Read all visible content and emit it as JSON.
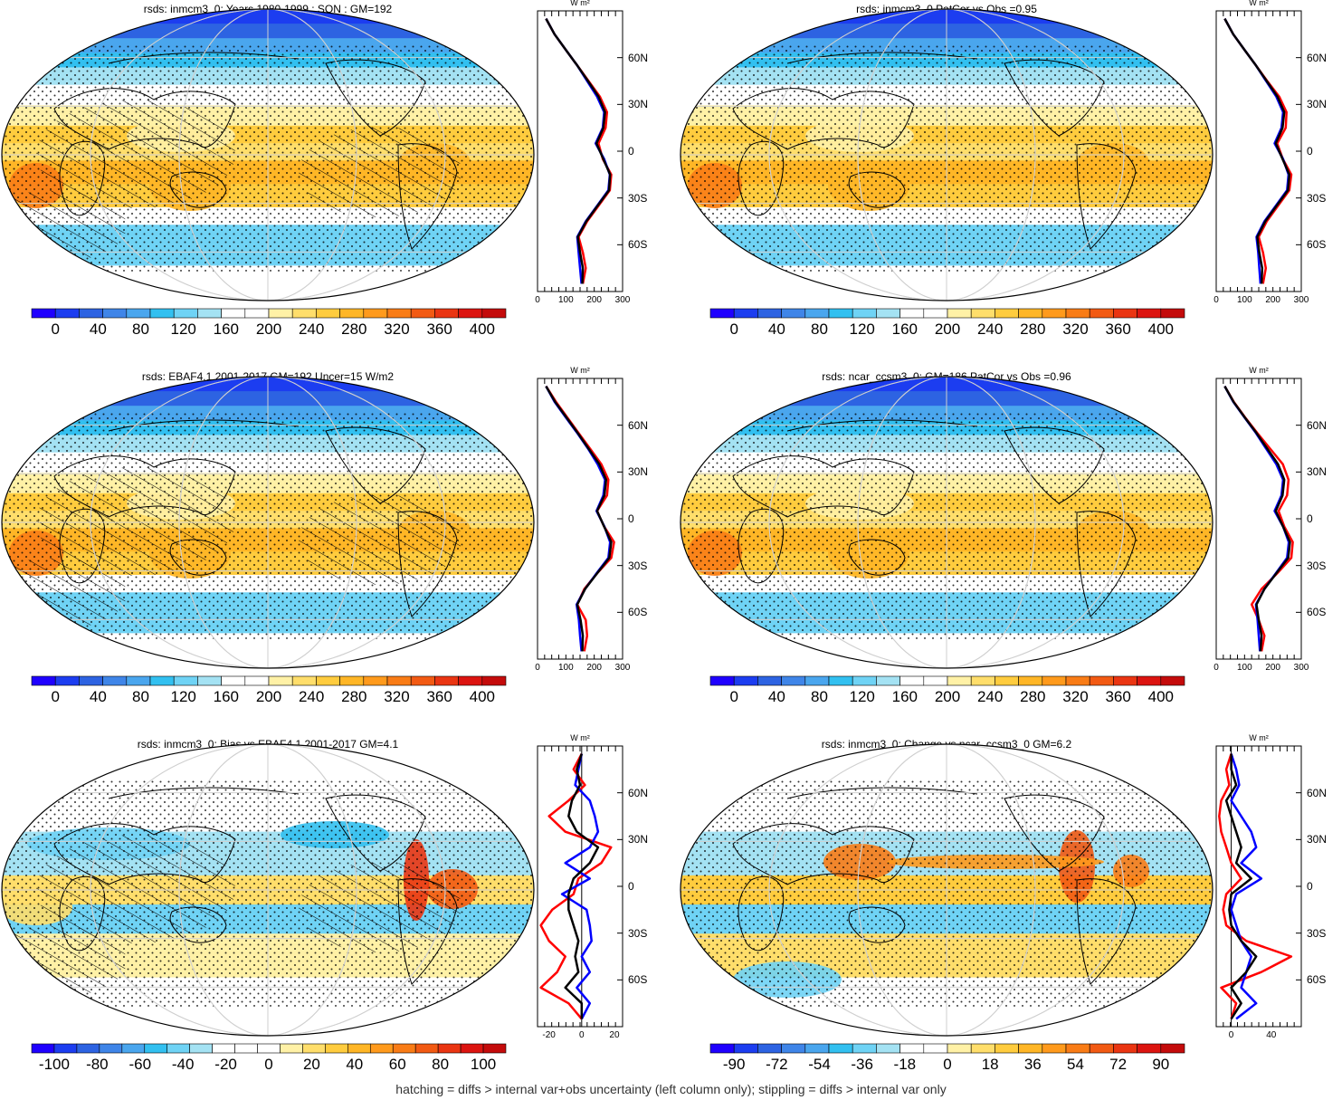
{
  "footer_note": "hatching = diffs > internal var+obs uncertainty (left column only); stippling = diffs > internal var only",
  "profile_unit": "W m²",
  "lat_labels": [
    "60N",
    "30N",
    "0",
    "30S",
    "60S"
  ],
  "chart_data": [
    {
      "type": "heatmap",
      "title": "rsds: inmcm3_0: Years 1980-1999 : SON : GM=192",
      "colorbar": {
        "palette": "absolute",
        "ticks": [
          "0",
          "40",
          "80",
          "120",
          "160",
          "200",
          "240",
          "280",
          "320",
          "360",
          "400"
        ]
      },
      "overlays": {
        "hatching": true,
        "stippling": true
      },
      "profile": {
        "type": "line",
        "x_ticks": [
          "0",
          "100",
          "200",
          "300"
        ],
        "xlim": [
          0,
          300
        ],
        "lat": [
          85,
          75,
          65,
          55,
          45,
          35,
          25,
          15,
          5,
          -5,
          -15,
          -25,
          -35,
          -45,
          -55,
          -65,
          -75,
          -85
        ],
        "series": [
          {
            "color": "#ff0000",
            "values": [
              30,
              60,
              100,
              140,
              180,
              220,
              245,
              240,
              215,
              230,
              260,
              255,
              215,
              175,
              145,
              160,
              170,
              160
            ]
          },
          {
            "color": "#0000ff",
            "values": [
              30,
              60,
              100,
              140,
              175,
              210,
              235,
              230,
              205,
              235,
              255,
              250,
              210,
              170,
              140,
              145,
              150,
              155
            ]
          },
          {
            "color": "#000000",
            "values": [
              30,
              60,
              100,
              140,
              178,
              215,
              238,
              232,
              208,
              232,
              256,
              252,
              212,
              172,
              142,
              150,
              160,
              158
            ]
          }
        ]
      }
    },
    {
      "type": "heatmap",
      "title": "rsds: inmcm3_0 PatCor vs Obs =0.95",
      "colorbar": {
        "palette": "absolute",
        "ticks": [
          "0",
          "40",
          "80",
          "120",
          "160",
          "200",
          "240",
          "280",
          "320",
          "360",
          "400"
        ]
      },
      "overlays": {
        "hatching": false,
        "stippling": true
      },
      "profile": {
        "type": "line",
        "x_ticks": [
          "0",
          "100",
          "200",
          "300"
        ],
        "xlim": [
          0,
          300
        ],
        "lat": [
          85,
          75,
          65,
          55,
          45,
          35,
          25,
          15,
          5,
          -5,
          -15,
          -25,
          -35,
          -45,
          -55,
          -65,
          -75,
          -85
        ],
        "series": [
          {
            "color": "#ff0000",
            "values": [
              30,
              60,
              100,
              140,
              180,
              222,
              248,
              245,
              215,
              235,
              265,
              258,
              218,
              178,
              150,
              165,
              175,
              165
            ]
          },
          {
            "color": "#0000ff",
            "values": [
              30,
              60,
              100,
              140,
              176,
              212,
              236,
              230,
              206,
              236,
              255,
              250,
              210,
              170,
              142,
              148,
              152,
              156
            ]
          },
          {
            "color": "#000000",
            "values": [
              30,
              60,
              100,
              140,
              178,
              216,
              240,
              234,
              210,
              234,
              258,
              253,
              213,
              173,
              145,
              152,
              162,
              160
            ]
          }
        ]
      }
    },
    {
      "type": "heatmap",
      "title": "rsds: EBAF4.1 2001-2017 GM=192 Uncer=15 W/m2",
      "colorbar": {
        "palette": "absolute",
        "ticks": [
          "0",
          "40",
          "80",
          "120",
          "160",
          "200",
          "240",
          "280",
          "320",
          "360",
          "400"
        ]
      },
      "overlays": {
        "hatching": true,
        "stippling": true
      },
      "profile": {
        "type": "line",
        "x_ticks": [
          "0",
          "100",
          "200",
          "300"
        ],
        "xlim": [
          0,
          300
        ],
        "lat": [
          85,
          75,
          65,
          55,
          45,
          35,
          25,
          15,
          5,
          -5,
          -15,
          -25,
          -35,
          -45,
          -55,
          -65,
          -75,
          -85
        ],
        "series": [
          {
            "color": "#ff0000",
            "values": [
              30,
              65,
              105,
              145,
              185,
              225,
              250,
              245,
              210,
              235,
              270,
              260,
              210,
              165,
              140,
              170,
              175,
              165
            ]
          },
          {
            "color": "#0000ff",
            "values": [
              30,
              60,
              100,
              140,
              178,
              212,
              238,
              232,
              208,
              236,
              256,
              250,
              208,
              168,
              138,
              146,
              150,
              155
            ]
          },
          {
            "color": "#000000",
            "values": [
              30,
              62,
              102,
              142,
              180,
              218,
              242,
              236,
              210,
              235,
              260,
              253,
              210,
              168,
              140,
              152,
              160,
              158
            ]
          }
        ]
      }
    },
    {
      "type": "heatmap",
      "title": "rsds: ncar_ccsm3_0: GM=186 PatCor vs Obs =0.96",
      "colorbar": {
        "palette": "absolute",
        "ticks": [
          "0",
          "40",
          "80",
          "120",
          "160",
          "200",
          "240",
          "280",
          "320",
          "360",
          "400"
        ]
      },
      "overlays": {
        "hatching": false,
        "stippling": true
      },
      "profile": {
        "type": "line",
        "x_ticks": [
          "0",
          "100",
          "200",
          "300"
        ],
        "xlim": [
          0,
          300
        ],
        "lat": [
          85,
          75,
          65,
          55,
          45,
          35,
          25,
          15,
          5,
          -5,
          -15,
          -25,
          -35,
          -45,
          -55,
          -65,
          -75,
          -85
        ],
        "series": [
          {
            "color": "#ff0000",
            "values": [
              30,
              62,
              102,
              145,
              190,
              235,
              255,
              250,
              220,
              240,
              270,
              265,
              215,
              160,
              125,
              150,
              170,
              160
            ]
          },
          {
            "color": "#0000ff",
            "values": [
              30,
              60,
              100,
              140,
              176,
              212,
              236,
              230,
              206,
              236,
              256,
              250,
              210,
              170,
              140,
              146,
              150,
              154
            ]
          },
          {
            "color": "#000000",
            "values": [
              30,
              61,
              101,
              142,
              180,
              218,
              240,
              234,
              210,
              236,
              260,
              254,
              212,
              170,
              142,
              150,
              160,
              156
            ]
          }
        ]
      }
    },
    {
      "type": "heatmap",
      "title": "rsds: inmcm3_0: Bias vs EBAF4.1 2001-2017  GM=4.1",
      "colorbar": {
        "palette": "bias",
        "ticks": [
          "-100",
          "-80",
          "-60",
          "-40",
          "-20",
          "0",
          "20",
          "40",
          "60",
          "80",
          "100"
        ]
      },
      "overlays": {
        "hatching": true,
        "stippling": true
      },
      "profile": {
        "type": "line",
        "x_ticks": [
          "-20",
          "0",
          "20"
        ],
        "xlim": [
          -27,
          25
        ],
        "lat": [
          85,
          75,
          65,
          55,
          45,
          35,
          25,
          15,
          5,
          -5,
          -15,
          -25,
          -35,
          -45,
          -55,
          -65,
          -75,
          -85
        ],
        "series": [
          {
            "color": "#ff0000",
            "values": [
              0,
              -5,
              2,
              -8,
              -20,
              -10,
              18,
              12,
              -2,
              -5,
              -18,
              -25,
              -20,
              -10,
              -15,
              -25,
              -8,
              0
            ]
          },
          {
            "color": "#0000ff",
            "values": [
              0,
              -2,
              -4,
              5,
              8,
              10,
              5,
              -10,
              5,
              -12,
              3,
              5,
              6,
              0,
              5,
              -3,
              5,
              0
            ]
          },
          {
            "color": "#000000",
            "values": [
              0,
              -3,
              -1,
              -6,
              -8,
              -3,
              10,
              5,
              -5,
              -8,
              -8,
              -5,
              -2,
              -4,
              -2,
              -10,
              0,
              0
            ]
          }
        ]
      }
    },
    {
      "type": "heatmap",
      "title": "rsds: inmcm3_0: Change vs ncar_ccsm3_0 GM=6.2",
      "colorbar": {
        "palette": "change",
        "ticks": [
          "-90",
          "-72",
          "-54",
          "-36",
          "-18",
          "0",
          "18",
          "36",
          "54",
          "72",
          "90"
        ]
      },
      "overlays": {
        "hatching": false,
        "stippling": true
      },
      "profile": {
        "type": "line",
        "x_ticks": [
          "0",
          "40"
        ],
        "xlim": [
          -15,
          70
        ],
        "lat": [
          85,
          75,
          65,
          55,
          45,
          35,
          25,
          15,
          5,
          -5,
          -15,
          -25,
          -35,
          -45,
          -55,
          -65,
          -75,
          -85
        ],
        "series": [
          {
            "color": "#ff0000",
            "values": [
              0,
              -5,
              -2,
              -10,
              -12,
              -10,
              -5,
              0,
              10,
              -5,
              -8,
              -5,
              15,
              60,
              30,
              -10,
              5,
              0
            ]
          },
          {
            "color": "#0000ff",
            "values": [
              0,
              5,
              8,
              0,
              10,
              20,
              25,
              10,
              30,
              5,
              0,
              5,
              10,
              20,
              15,
              10,
              25,
              5
            ]
          },
          {
            "color": "#000000",
            "values": [
              0,
              0,
              5,
              -5,
              0,
              5,
              10,
              5,
              20,
              0,
              -2,
              0,
              10,
              25,
              15,
              0,
              10,
              0
            ]
          }
        ]
      }
    }
  ]
}
